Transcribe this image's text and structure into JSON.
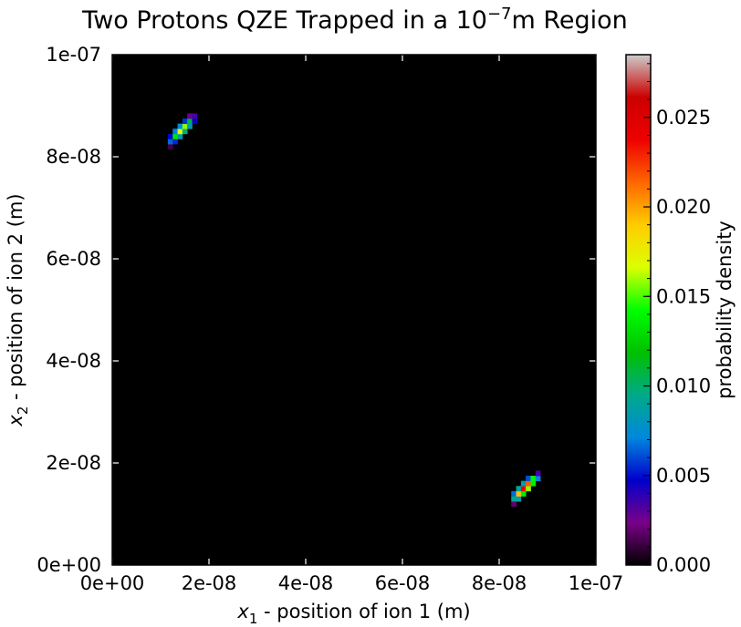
{
  "chart_data": {
    "type": "heatmap",
    "title": {
      "main": "Two Protons QZE Trapped in a 10",
      "sup": "−7",
      "tail": "m Region"
    },
    "xlabel": {
      "var": "x",
      "sub": "1",
      "rest": " - position of ion 1 (m)"
    },
    "ylabel": {
      "var": "x",
      "sub": "2",
      "rest": " - position of ion 2 (m)"
    },
    "xlim": [
      0,
      1e-07
    ],
    "ylim": [
      0,
      1e-07
    ],
    "x_ticks": [
      0,
      2e-08,
      4e-08,
      6e-08,
      8e-08,
      1e-07
    ],
    "x_tick_labels": [
      "0e+00",
      "2e-08",
      "4e-08",
      "6e-08",
      "8e-08",
      "1e-07"
    ],
    "y_ticks": [
      0,
      2e-08,
      4e-08,
      6e-08,
      8e-08,
      1e-07
    ],
    "y_tick_labels": [
      "0e+00",
      "2e-08",
      "4e-08",
      "6e-08",
      "8e-08",
      "1e-07"
    ],
    "background_value": 0.0,
    "colorbar": {
      "label": "probability density",
      "range": [
        0,
        0.0285
      ],
      "ticks": [
        0,
        0.005,
        0.01,
        0.015,
        0.02,
        0.025
      ],
      "tick_labels": [
        "0.000",
        "0.005",
        "0.010",
        "0.015",
        "0.020",
        "0.025"
      ],
      "colormap": [
        "#000000",
        "#7a0088",
        "#0000cc",
        "#0088dd",
        "#00aa88",
        "#00c000",
        "#00ff00",
        "#ddff00",
        "#ffcc00",
        "#ff6600",
        "#ee0000",
        "#cc0000",
        "#cccccc"
      ]
    },
    "blobs": [
      {
        "name": "upper-left blob",
        "x_start": 1.15e-08,
        "y_start": 8.25e-08,
        "x_end": 1.72e-08,
        "y_end": 8.8e-08,
        "peak": 0.017,
        "width": 6e-10
      },
      {
        "name": "lower-right blob",
        "x_start": 8.25e-08,
        "y_start": 1.25e-08,
        "x_end": 8.82e-08,
        "y_end": 1.78e-08,
        "peak": 0.0245,
        "width": 6e-10
      }
    ]
  }
}
